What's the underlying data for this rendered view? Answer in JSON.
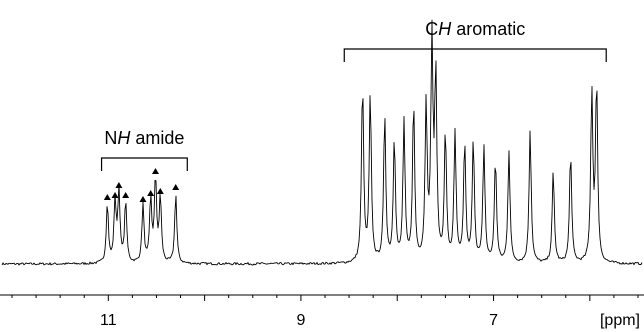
{
  "chart_data": {
    "type": "line",
    "x_axis": {
      "min": 12.0,
      "max": 5.5,
      "reversed": true,
      "unit_label": "[ppm]",
      "major_ticks": [
        11,
        10,
        9,
        8,
        7,
        6
      ],
      "minor_step": 0.25,
      "tick_labels": [
        {
          "value": 11,
          "text": "11"
        },
        {
          "value": 9,
          "text": "9"
        },
        {
          "value": 7,
          "text": "7"
        }
      ]
    },
    "grid": false,
    "legend": "none",
    "annotations": [
      {
        "id": "nh",
        "text_parts": [
          {
            "t": "N",
            "italic": false
          },
          {
            "t": "H",
            "italic": true
          },
          {
            "t": " amide",
            "italic": false
          }
        ],
        "range": [
          11.07,
          10.18
        ]
      },
      {
        "id": "ch",
        "text_parts": [
          {
            "t": "C",
            "italic": false
          },
          {
            "t": "H",
            "italic": true
          },
          {
            "t": " aromatic",
            "italic": false
          }
        ],
        "range": [
          8.55,
          5.83
        ]
      }
    ],
    "marker_symbol": "▲",
    "series": [
      {
        "peaks": [
          {
            "ppm": 11.01,
            "h": 0.3,
            "marked": true
          },
          {
            "ppm": 10.93,
            "h": 0.31,
            "marked": true
          },
          {
            "ppm": 10.89,
            "h": 0.36,
            "marked": true
          },
          {
            "ppm": 10.82,
            "h": 0.31,
            "marked": true
          },
          {
            "ppm": 10.64,
            "h": 0.29,
            "marked": true
          },
          {
            "ppm": 10.56,
            "h": 0.32,
            "marked": true
          },
          {
            "ppm": 10.51,
            "h": 0.43,
            "marked": true
          },
          {
            "ppm": 10.46,
            "h": 0.33,
            "marked": true
          },
          {
            "ppm": 10.3,
            "h": 0.35,
            "marked": true
          },
          {
            "ppm": 8.36,
            "h": 0.9,
            "marked": false
          },
          {
            "ppm": 8.28,
            "h": 0.84,
            "marked": false
          },
          {
            "ppm": 8.13,
            "h": 0.74,
            "marked": false
          },
          {
            "ppm": 8.03,
            "h": 0.62,
            "marked": false
          },
          {
            "ppm": 7.93,
            "h": 0.7,
            "marked": false
          },
          {
            "ppm": 7.83,
            "h": 0.8,
            "marked": false
          },
          {
            "ppm": 7.7,
            "h": 0.78,
            "marked": false
          },
          {
            "ppm": 7.64,
            "h": 1.08,
            "marked": false
          },
          {
            "ppm": 7.6,
            "h": 0.92,
            "marked": false
          },
          {
            "ppm": 7.5,
            "h": 0.65,
            "marked": false
          },
          {
            "ppm": 7.4,
            "h": 0.64,
            "marked": false
          },
          {
            "ppm": 7.3,
            "h": 0.6,
            "marked": false
          },
          {
            "ppm": 7.21,
            "h": 0.61,
            "marked": false
          },
          {
            "ppm": 7.1,
            "h": 0.58,
            "marked": false
          },
          {
            "ppm": 6.98,
            "h": 0.52,
            "marked": false
          },
          {
            "ppm": 6.84,
            "h": 0.56,
            "marked": false
          },
          {
            "ppm": 6.62,
            "h": 0.67,
            "marked": false
          },
          {
            "ppm": 6.38,
            "h": 0.46,
            "marked": false
          },
          {
            "ppm": 6.2,
            "h": 0.56,
            "marked": false
          },
          {
            "ppm": 5.98,
            "h": 0.85,
            "marked": false
          },
          {
            "ppm": 5.93,
            "h": 0.9,
            "marked": false
          }
        ]
      }
    ]
  }
}
